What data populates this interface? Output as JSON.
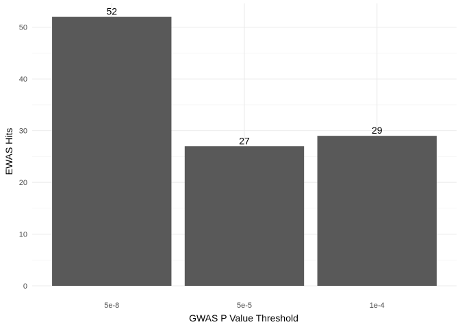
{
  "chart_data": {
    "type": "bar",
    "categories": [
      "5e-8",
      "5e-5",
      "1e-4"
    ],
    "values": [
      52,
      27,
      29
    ],
    "data_labels": [
      "52",
      "27",
      "29"
    ],
    "title": "",
    "xlabel": "GWAS P Value Threshold",
    "ylabel": "EWAS Hits",
    "ylim": [
      0,
      54.6
    ],
    "yticks": [
      0,
      10,
      20,
      30,
      40,
      50
    ],
    "ytick_labels": [
      "0",
      "10",
      "20",
      "30",
      "40",
      "50"
    ],
    "grid": true,
    "legend": "none",
    "bar_color": "#595959",
    "grid_color": "#ebebeb"
  }
}
